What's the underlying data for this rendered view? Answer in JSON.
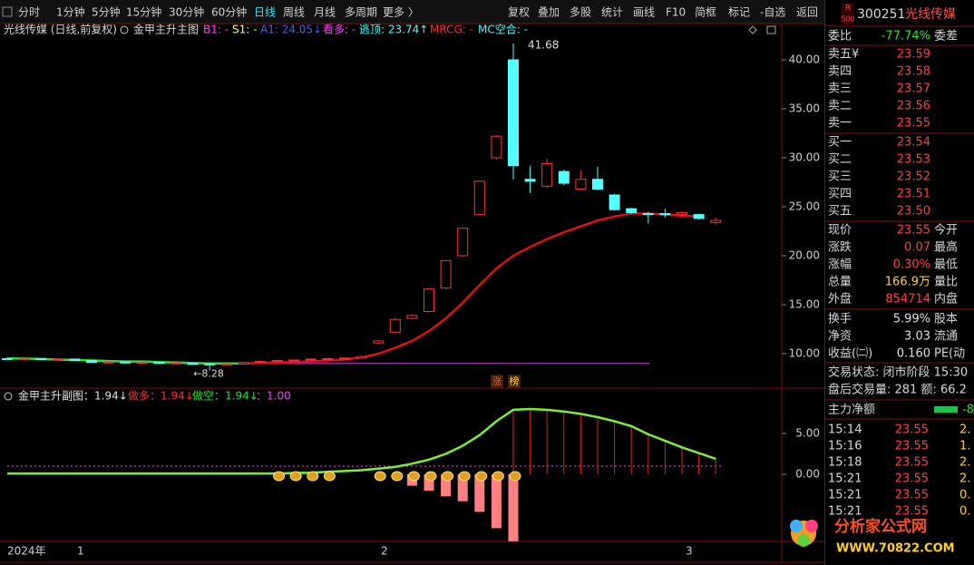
{
  "toolbar": {
    "left": [
      "分时",
      "1分钟",
      "5分钟",
      "15分钟",
      "30分钟",
      "60分钟",
      "日线",
      "周线",
      "月线",
      "多周期",
      "更多 〉"
    ],
    "selected": 6,
    "right": [
      "复权",
      "叠加",
      "多股",
      "统计",
      "画线",
      "F10",
      "简框",
      "标记",
      "-自选",
      "返回"
    ]
  },
  "main_chart": {
    "type": "candlestick",
    "title": "光线传媒 (日线,前复权)",
    "indicator": "金甲主升主图",
    "indicator_values": [
      {
        "text": "B1: -",
        "color": "#ff40ff"
      },
      {
        "text": "S1: -",
        "color": "#ffff40"
      },
      {
        "text": "A1: 24.05↓",
        "color": "#4060ff"
      },
      {
        "text": "看多: -",
        "color": "#ff40ff"
      },
      {
        "text": "逃顶: 23.74↑",
        "color": "#40ffff"
      },
      {
        "text": "MRCG: -",
        "color": "#ff3030"
      },
      {
        "text": "MC空合: -",
        "color": "#40ffff"
      }
    ],
    "open": [
      9.5,
      9.45,
      9.5,
      9.4,
      9.45,
      9.3,
      9.05,
      9.15,
      9.05,
      9.1,
      9.0,
      9.0,
      8.95,
      8.9,
      8.95,
      9.1,
      9.2,
      9.3,
      9.35,
      9.45,
      9.5,
      9.55,
      11.1,
      12.2,
      13.6,
      14.3,
      16.7,
      20.0,
      24.2,
      30.0,
      40.0,
      27.8,
      27.1,
      28.6,
      26.8,
      27.8,
      26.2,
      24.8,
      24.3,
      24.3,
      24.2,
      24.2,
      23.4
    ],
    "high": [
      9.6,
      9.55,
      9.55,
      9.5,
      9.5,
      9.35,
      9.2,
      9.2,
      9.15,
      9.15,
      9.1,
      9.05,
      9.0,
      9.0,
      9.15,
      9.3,
      9.4,
      9.4,
      9.5,
      9.55,
      9.6,
      9.8,
      11.4,
      13.7,
      14.0,
      16.7,
      19.6,
      22.9,
      27.7,
      32.3,
      41.68,
      29.2,
      29.9,
      28.8,
      28.7,
      29.1,
      26.3,
      24.9,
      24.5,
      24.8,
      24.5,
      24.3,
      23.9
    ],
    "low": [
      9.4,
      9.4,
      9.35,
      9.35,
      9.25,
      9.05,
      9.0,
      9.0,
      9.0,
      8.95,
      8.9,
      8.85,
      8.28,
      8.85,
      8.9,
      9.05,
      9.15,
      9.25,
      9.3,
      9.4,
      9.45,
      9.5,
      11.0,
      12.1,
      13.5,
      14.2,
      16.6,
      19.9,
      24.1,
      29.8,
      27.8,
      26.4,
      26.9,
      27.2,
      26.7,
      26.7,
      24.6,
      24.3,
      23.3,
      23.9,
      23.9,
      23.7,
      23.2
    ],
    "close": [
      9.45,
      9.5,
      9.4,
      9.45,
      9.3,
      9.1,
      9.15,
      9.05,
      9.1,
      9.0,
      9.05,
      8.9,
      8.9,
      8.95,
      9.1,
      9.2,
      9.3,
      9.35,
      9.45,
      9.5,
      9.55,
      9.7,
      11.3,
      13.5,
      13.9,
      16.6,
      19.5,
      22.8,
      27.6,
      32.2,
      29.2,
      27.6,
      29.4,
      27.4,
      27.8,
      26.8,
      24.7,
      24.4,
      24.2,
      24.2,
      24.4,
      23.8,
      23.6
    ],
    "up_color": "#ff3232",
    "down_color": "#54ffff",
    "series": [
      {
        "color": "#e01010",
        "values": [
          null,
          null,
          null,
          null,
          null,
          null,
          null,
          null,
          null,
          null,
          null,
          null,
          null,
          null,
          9.0,
          9.05,
          9.1,
          9.15,
          9.2,
          9.3,
          9.4,
          9.6,
          10.0,
          10.6,
          11.3,
          12.3,
          13.6,
          15.2,
          17.0,
          18.7,
          20.0,
          20.9,
          21.7,
          22.4,
          23.0,
          23.6,
          24.0,
          24.3,
          24.3,
          24.2,
          24.1,
          24.0,
          null
        ]
      },
      {
        "color": "#30e030",
        "values": [
          9.5,
          9.5,
          9.45,
          9.4,
          9.35,
          9.3,
          9.25,
          9.2,
          9.2,
          9.15,
          9.1,
          9.05,
          9.0,
          9.0,
          9.0,
          null,
          null,
          null,
          null,
          null,
          null,
          null,
          null,
          null,
          null,
          null,
          null,
          null,
          null,
          null,
          null,
          null,
          null,
          null,
          null,
          null,
          null,
          null,
          null,
          null,
          null,
          null,
          null
        ]
      }
    ],
    "support_line": {
      "value": 9.0,
      "color": "#b030c0"
    },
    "high_label": "41.68",
    "low_label": "←8.28",
    "tags": [
      "涨",
      "榜"
    ],
    "ylim": [
      6.48,
      43.7
    ],
    "yticks": [
      {
        "value": 10,
        "label": "10.00"
      },
      {
        "value": 15,
        "label": "15.00"
      },
      {
        "value": 20,
        "label": "20.00"
      },
      {
        "value": 25,
        "label": "25.00"
      },
      {
        "value": 30,
        "label": "30.00"
      },
      {
        "value": 35,
        "label": "35.00"
      },
      {
        "value": 40,
        "label": "40.00"
      }
    ]
  },
  "sub_chart": {
    "type": "line",
    "items": [
      {
        "text": "金甲主升副图：1.94↓",
        "color": "#e0e0e0"
      },
      {
        "text": "做多：1.94↓",
        "color": "#ff3030"
      },
      {
        "text": "做空：1.94↓",
        "color": "#30e030"
      },
      {
        "text": "：1.00",
        "color": "#ff40ff"
      }
    ],
    "line": {
      "color": "#7cf030",
      "values": [
        0.1,
        0.1,
        0.1,
        0.1,
        0.1,
        0.1,
        0.1,
        0.1,
        0.1,
        0.1,
        0.1,
        0.1,
        0.1,
        0.1,
        0.1,
        0.1,
        0.1,
        0.15,
        0.2,
        0.3,
        0.4,
        0.5,
        0.7,
        0.9,
        1.3,
        1.8,
        2.5,
        3.5,
        4.8,
        6.5,
        7.9,
        8.0,
        7.9,
        7.7,
        7.4,
        7.0,
        6.5,
        5.9,
        4.9,
        4.1,
        3.3,
        2.6,
        1.9
      ]
    },
    "bars": {
      "color": "#ff8080",
      "values": [
        null,
        null,
        null,
        null,
        null,
        null,
        null,
        null,
        null,
        null,
        null,
        null,
        null,
        null,
        null,
        null,
        null,
        null,
        null,
        null,
        null,
        null,
        null,
        null,
        -1.4,
        -2.0,
        -2.7,
        -3.3,
        -4.6,
        -6.6,
        -8.2,
        null,
        null,
        null,
        null,
        null,
        null,
        null,
        null,
        null,
        null,
        null,
        null
      ]
    },
    "stems": {
      "color": "#e02020",
      "values": [
        null,
        null,
        null,
        null,
        null,
        null,
        null,
        null,
        null,
        null,
        null,
        null,
        null,
        null,
        null,
        null,
        null,
        null,
        null,
        null,
        null,
        null,
        null,
        null,
        null,
        null,
        null,
        null,
        null,
        null,
        7.9,
        8.0,
        7.9,
        7.7,
        7.4,
        7.0,
        6.5,
        5.9,
        4.9,
        4.1,
        3.3,
        2.6,
        1.9
      ]
    },
    "ref_line": {
      "value": 1.0,
      "color": "#ff40ff"
    },
    "ylim": [
      -8.22,
      10.33
    ],
    "yticks": [
      {
        "value": 0,
        "label": "0.00"
      },
      {
        "value": 5,
        "label": "5.00"
      }
    ]
  },
  "x_axis": [
    "2024年",
    "1",
    "2",
    "3"
  ],
  "quote": {
    "badge": "R",
    "badge_sub": "500",
    "code": "300251",
    "name": "光线传媒",
    "wei_bi": [
      "委比",
      "-77.74%",
      "委差"
    ],
    "asks": [
      [
        "卖五¥",
        "23.59"
      ],
      [
        "卖四",
        "23.58"
      ],
      [
        "卖三",
        "23.57"
      ],
      [
        "卖二",
        "23.56"
      ],
      [
        "卖一",
        "23.55"
      ]
    ],
    "bids": [
      [
        "买一",
        "23.54"
      ],
      [
        "买二",
        "23.53"
      ],
      [
        "买三",
        "23.52"
      ],
      [
        "买四",
        "23.51"
      ],
      [
        "买五",
        "23.50"
      ]
    ],
    "stats": [
      [
        "现价",
        "23.55",
        "今开"
      ],
      [
        "涨跌",
        "0.07",
        "最高"
      ],
      [
        "涨幅",
        "0.30%",
        "最低"
      ],
      [
        "总量",
        "166.9万",
        "量比"
      ],
      [
        "外盘",
        "854714",
        "内盘"
      ]
    ],
    "stats2": [
      [
        "换手",
        "5.99%",
        "股本"
      ],
      [
        "净资",
        "3.03",
        "流通"
      ],
      [
        "收益(㈡)",
        "0.160",
        "PE(动"
      ]
    ],
    "status": [
      "交易状态: 闭市阶段  15:30",
      "盘后交易量: 281   额: 66.2"
    ],
    "flow": [
      "主力净额",
      "-8"
    ],
    "ticks": [
      [
        "15:14",
        "23.55",
        "2."
      ],
      [
        "15:16",
        "23.55",
        "1."
      ],
      [
        "15:18",
        "23.55",
        "2."
      ],
      [
        "15:21",
        "23.55",
        "2."
      ],
      [
        "15:21",
        "23.55",
        "0."
      ],
      [
        "15:21",
        "23.55",
        "0."
      ]
    ]
  },
  "watermark": {
    "title": "分析家公式网",
    "url": "WWW.70822.COM"
  }
}
